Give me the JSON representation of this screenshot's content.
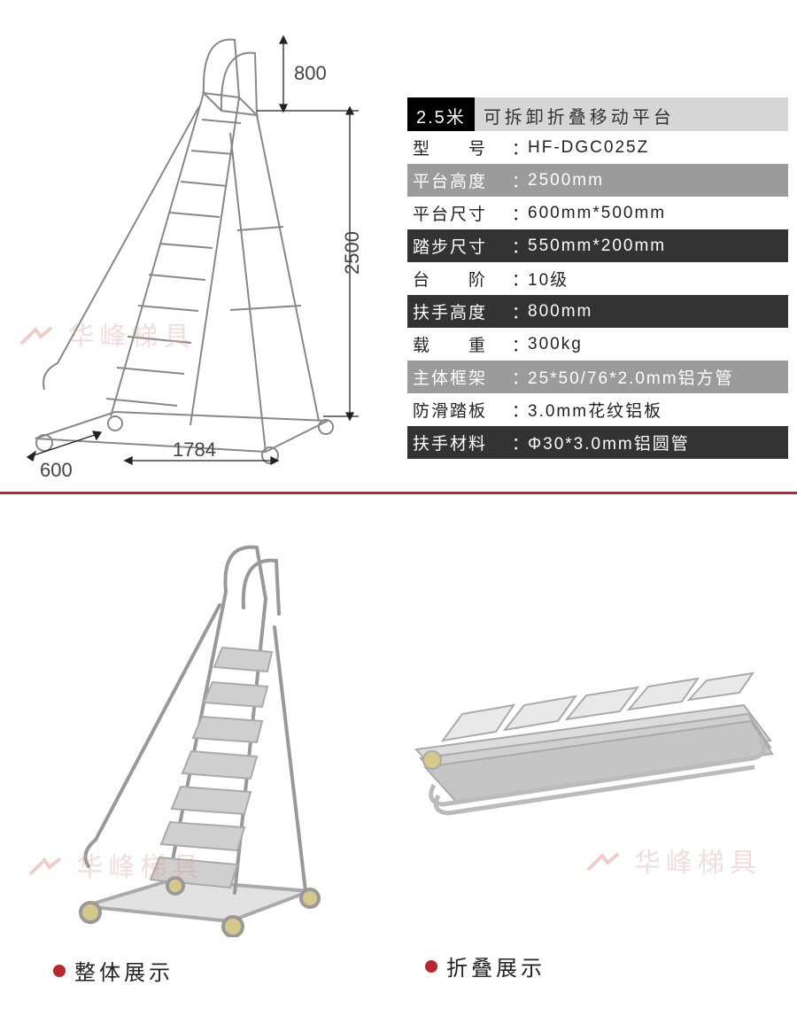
{
  "colors": {
    "accent": "#b8272d",
    "dark": "#333333",
    "gray": "#9b9b9b",
    "lightgray": "#d6d6d6",
    "watermark": "#d9a19a"
  },
  "diagram": {
    "dims": {
      "height_top": "800",
      "height_platform": "2500",
      "depth": "1784",
      "width": "600"
    }
  },
  "spec": {
    "title_badge": "2.5米",
    "title_sub": "可拆卸折叠移动平台",
    "rows": [
      {
        "style": "plain",
        "label": "型　　号",
        "value": "HF-DGC025Z"
      },
      {
        "style": "gray",
        "label": "平台高度",
        "value": "2500mm"
      },
      {
        "style": "plain",
        "label": "平台尺寸",
        "value": "600mm*500mm"
      },
      {
        "style": "dark",
        "label": "踏步尺寸",
        "value": "550mm*200mm"
      },
      {
        "style": "plain",
        "label": "台　　阶",
        "value": "10级"
      },
      {
        "style": "dark",
        "label": "扶手高度",
        "value": "800mm"
      },
      {
        "style": "plain",
        "label": "载　　重",
        "value": "300kg"
      },
      {
        "style": "gray",
        "label": "主体框架",
        "value": "25*50/76*2.0mm铝方管"
      },
      {
        "style": "plain",
        "label": "防滑踏板",
        "value": "3.0mm花纹铝板"
      },
      {
        "style": "dark",
        "label": "扶手材料",
        "value": "Φ30*3.0mm铝圆管"
      }
    ]
  },
  "watermark_text": "华峰梯具",
  "captions": {
    "left": "整体展示",
    "right": "折叠展示"
  }
}
